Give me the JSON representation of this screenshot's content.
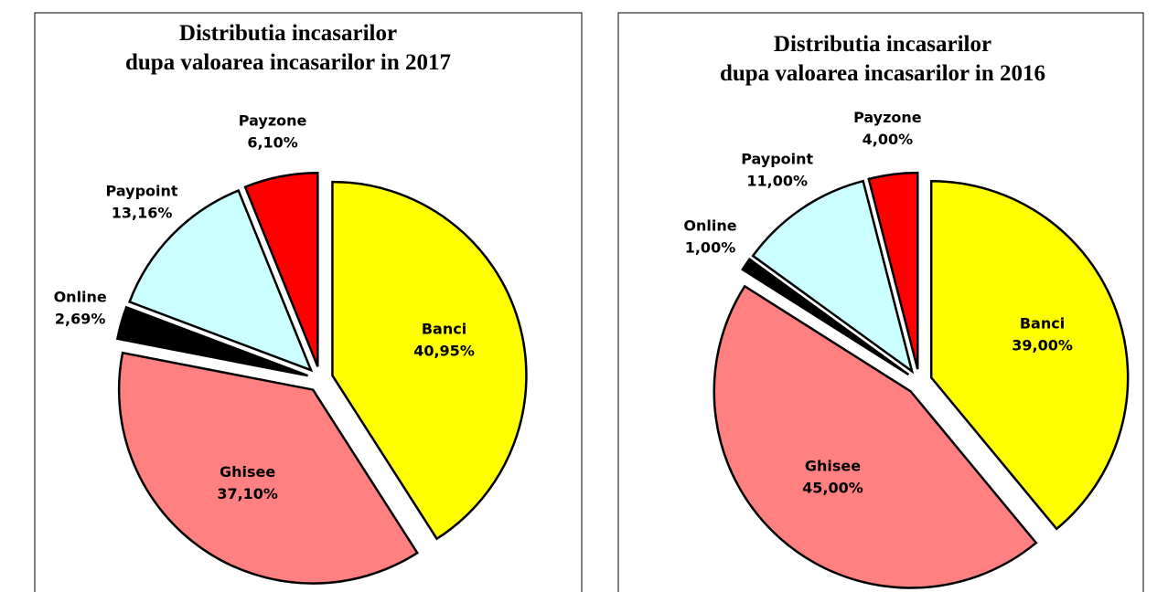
{
  "chart_data": [
    {
      "type": "pie",
      "title": "Distributia incasarilor\ndupa valoarea incasarilor in 2017",
      "categories": [
        "Banci",
        "Ghisee",
        "Online",
        "Paypoint",
        "Payzone"
      ],
      "values": [
        40.95,
        37.1,
        2.69,
        13.16,
        6.1
      ],
      "value_labels": [
        "40,95%",
        "37,10%",
        "2,69%",
        "13,16%",
        "6,10%"
      ],
      "colors": [
        "#ffff00",
        "#ff8080",
        "#000000",
        "#ccffff",
        "#ff0000"
      ]
    },
    {
      "type": "pie",
      "title": "Distributia incasarilor\ndupa valoarea incasarilor in 2016",
      "categories": [
        "Banci",
        "Ghisee",
        "Online",
        "Paypoint",
        "Payzone"
      ],
      "values": [
        39.0,
        45.0,
        1.0,
        11.0,
        4.0
      ],
      "value_labels": [
        "39,00%",
        "45,00%",
        "1,00%",
        "11,00%",
        "4,00%"
      ],
      "colors": [
        "#ffff00",
        "#ff8080",
        "#000000",
        "#ccffff",
        "#ff0000"
      ]
    }
  ]
}
